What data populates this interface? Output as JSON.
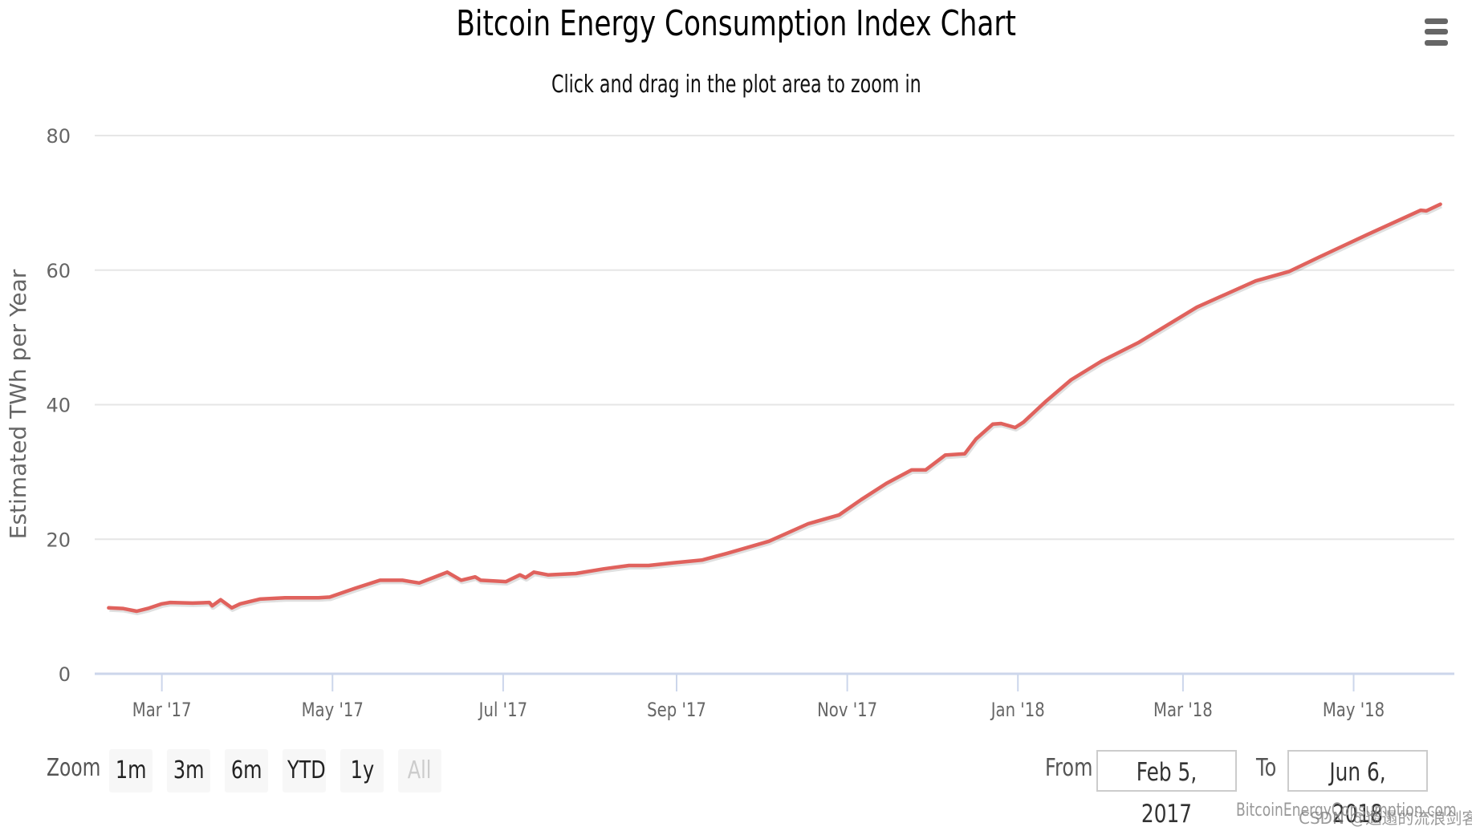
{
  "menu_icon": "hamburger-menu-icon",
  "range_selector": {
    "zoom_label": "Zoom",
    "buttons": [
      {
        "label": "1m",
        "enabled": true
      },
      {
        "label": "3m",
        "enabled": true
      },
      {
        "label": "6m",
        "enabled": true
      },
      {
        "label": "YTD",
        "enabled": true
      },
      {
        "label": "1y",
        "enabled": true
      },
      {
        "label": "All",
        "enabled": false
      }
    ],
    "from_label": "From",
    "from_value": "Feb 5, 2017",
    "to_label": "To",
    "to_value": "Jun 6, 2018"
  },
  "credits": "BitcoinEnergyConsumption.com",
  "watermark": "CSDN @邋遢的流浪剑客",
  "colors": {
    "series": "#e0625d",
    "grid": "#e6e6e6",
    "axis": "#ccd6eb"
  },
  "chart_data": {
    "type": "line",
    "title": "Bitcoin Energy Consumption Index Chart",
    "subtitle": "Click and drag in the plot area to zoom in",
    "xlabel": "",
    "ylabel": "Estimated TWh per Year",
    "xlim": [
      "2017-02-05",
      "2018-06-06"
    ],
    "ylim": [
      0,
      80
    ],
    "yticks": [
      0,
      20,
      40,
      60,
      80
    ],
    "xticks": [
      {
        "date": "2017-03-01",
        "label": "Mar '17"
      },
      {
        "date": "2017-05-01",
        "label": "May '17"
      },
      {
        "date": "2017-07-01",
        "label": "Jul '17"
      },
      {
        "date": "2017-09-01",
        "label": "Sep '17"
      },
      {
        "date": "2017-11-01",
        "label": "Nov '17"
      },
      {
        "date": "2018-01-01",
        "label": "Jan '18"
      },
      {
        "date": "2018-03-01",
        "label": "Mar '18"
      },
      {
        "date": "2018-05-01",
        "label": "May '18"
      }
    ],
    "grid": true,
    "legend": "none",
    "series": [
      {
        "name": "Estimated TWh per Year",
        "points": [
          [
            "2017-02-10",
            9.8
          ],
          [
            "2017-02-15",
            9.7
          ],
          [
            "2017-02-20",
            9.3
          ],
          [
            "2017-02-24",
            9.7
          ],
          [
            "2017-03-01",
            10.4
          ],
          [
            "2017-03-04",
            10.6
          ],
          [
            "2017-03-12",
            10.5
          ],
          [
            "2017-03-18",
            10.6
          ],
          [
            "2017-03-19",
            10.1
          ],
          [
            "2017-03-22",
            11.0
          ],
          [
            "2017-03-26",
            9.8
          ],
          [
            "2017-03-29",
            10.4
          ],
          [
            "2017-04-05",
            11.1
          ],
          [
            "2017-04-14",
            11.3
          ],
          [
            "2017-04-26",
            11.3
          ],
          [
            "2017-04-30",
            11.4
          ],
          [
            "2017-05-09",
            12.7
          ],
          [
            "2017-05-18",
            13.9
          ],
          [
            "2017-05-26",
            13.9
          ],
          [
            "2017-06-01",
            13.5
          ],
          [
            "2017-06-06",
            14.3
          ],
          [
            "2017-06-11",
            15.1
          ],
          [
            "2017-06-16",
            13.9
          ],
          [
            "2017-06-21",
            14.4
          ],
          [
            "2017-06-23",
            13.9
          ],
          [
            "2017-07-02",
            13.7
          ],
          [
            "2017-07-07",
            14.7
          ],
          [
            "2017-07-09",
            14.3
          ],
          [
            "2017-07-12",
            15.1
          ],
          [
            "2017-07-17",
            14.7
          ],
          [
            "2017-07-27",
            14.9
          ],
          [
            "2017-08-06",
            15.6
          ],
          [
            "2017-08-15",
            16.1
          ],
          [
            "2017-08-22",
            16.1
          ],
          [
            "2017-08-31",
            16.5
          ],
          [
            "2017-09-10",
            16.9
          ],
          [
            "2017-09-19",
            17.9
          ],
          [
            "2017-10-04",
            19.7
          ],
          [
            "2017-10-18",
            22.3
          ],
          [
            "2017-10-29",
            23.6
          ],
          [
            "2017-11-06",
            25.9
          ],
          [
            "2017-11-15",
            28.3
          ],
          [
            "2017-11-24",
            30.3
          ],
          [
            "2017-11-29",
            30.3
          ],
          [
            "2017-12-06",
            32.5
          ],
          [
            "2017-12-13",
            32.7
          ],
          [
            "2017-12-17",
            34.9
          ],
          [
            "2017-12-23",
            37.1
          ],
          [
            "2017-12-26",
            37.2
          ],
          [
            "2017-12-31",
            36.6
          ],
          [
            "2018-01-03",
            37.4
          ],
          [
            "2018-01-11",
            40.5
          ],
          [
            "2018-01-20",
            43.7
          ],
          [
            "2018-01-31",
            46.5
          ],
          [
            "2018-02-13",
            49.2
          ],
          [
            "2018-03-06",
            54.5
          ],
          [
            "2018-03-27",
            58.4
          ],
          [
            "2018-04-08",
            59.8
          ],
          [
            "2018-04-19",
            62.0
          ],
          [
            "2018-05-06",
            65.3
          ],
          [
            "2018-05-25",
            68.9
          ],
          [
            "2018-05-27",
            68.8
          ],
          [
            "2018-06-01",
            69.8
          ]
        ]
      }
    ]
  }
}
